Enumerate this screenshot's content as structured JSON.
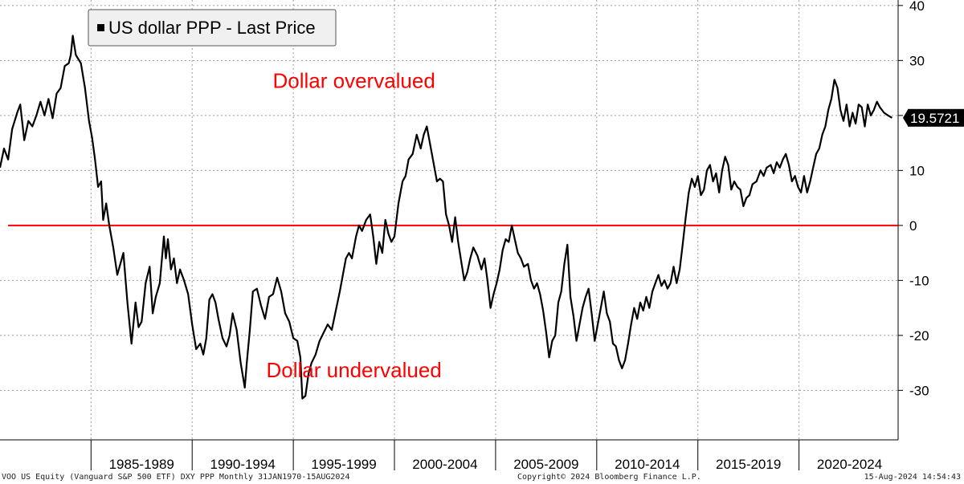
{
  "chart_data": {
    "type": "line",
    "title": "",
    "legend_label": "US dollar PPP - Last Price",
    "legend_position": "top-left",
    "last_price_label": "19.5721",
    "xlabel": "",
    "ylabel": "",
    "ylim": [
      -39,
      41
    ],
    "yticks": [
      40,
      30,
      20,
      10,
      0,
      -10,
      -20,
      -30
    ],
    "xlim": [
      1980.5,
      2024.9
    ],
    "x_period_labels": [
      "1985-1989",
      "1990-1994",
      "1995-1999",
      "2000-2004",
      "2005-2009",
      "2010-2014",
      "2015-2019",
      "2020-2024"
    ],
    "x_period_separators": [
      1985,
      1990,
      1995,
      2000,
      2005,
      2010,
      2015,
      2020
    ],
    "reference_line": {
      "value": 0,
      "color": "#ff0000"
    },
    "annotations": [
      {
        "text": "Dollar overvalued",
        "x": 1998.0,
        "y": 25.0,
        "color": "#ff0000"
      },
      {
        "text": "Dollar undervalued",
        "x": 1998.0,
        "y": -27.6,
        "color": "#ff0000"
      }
    ],
    "series": [
      {
        "name": "US dollar PPP",
        "color": "#000000",
        "points": [
          [
            1980.5,
            10.5
          ],
          [
            1980.7,
            14.0
          ],
          [
            1980.9,
            12.0
          ],
          [
            1981.1,
            17.5
          ],
          [
            1981.35,
            20.5
          ],
          [
            1981.5,
            22.0
          ],
          [
            1981.7,
            15.5
          ],
          [
            1981.9,
            19.0
          ],
          [
            1982.1,
            18.0
          ],
          [
            1982.3,
            20.0
          ],
          [
            1982.5,
            22.5
          ],
          [
            1982.7,
            20.0
          ],
          [
            1982.9,
            23.0
          ],
          [
            1983.1,
            19.5
          ],
          [
            1983.3,
            24.0
          ],
          [
            1983.5,
            25.0
          ],
          [
            1983.7,
            29.0
          ],
          [
            1983.9,
            29.5
          ],
          [
            1984.0,
            31.0
          ],
          [
            1984.1,
            34.5
          ],
          [
            1984.25,
            31.0
          ],
          [
            1984.5,
            29.5
          ],
          [
            1984.7,
            25.0
          ],
          [
            1984.9,
            19.0
          ],
          [
            1985.05,
            16.0
          ],
          [
            1985.2,
            12.0
          ],
          [
            1985.35,
            7.0
          ],
          [
            1985.5,
            8.0
          ],
          [
            1985.6,
            1.0
          ],
          [
            1985.75,
            4.0
          ],
          [
            1985.9,
            0.0
          ],
          [
            1986.1,
            -4.0
          ],
          [
            1986.3,
            -9.0
          ],
          [
            1986.45,
            -7.0
          ],
          [
            1986.6,
            -5.0
          ],
          [
            1986.8,
            -14.0
          ],
          [
            1987.0,
            -21.5
          ],
          [
            1987.2,
            -14.0
          ],
          [
            1987.35,
            -18.5
          ],
          [
            1987.5,
            -17.5
          ],
          [
            1987.7,
            -10.5
          ],
          [
            1987.9,
            -7.5
          ],
          [
            1988.05,
            -16.0
          ],
          [
            1988.2,
            -13.0
          ],
          [
            1988.4,
            -10.5
          ],
          [
            1988.6,
            -2.0
          ],
          [
            1988.7,
            -6.0
          ],
          [
            1988.8,
            -2.5
          ],
          [
            1988.95,
            -8.0
          ],
          [
            1989.1,
            -6.0
          ],
          [
            1989.25,
            -10.5
          ],
          [
            1989.4,
            -8.0
          ],
          [
            1989.6,
            -10.0
          ],
          [
            1989.8,
            -12.5
          ],
          [
            1990.0,
            -18.0
          ],
          [
            1990.2,
            -22.5
          ],
          [
            1990.4,
            -21.5
          ],
          [
            1990.55,
            -23.5
          ],
          [
            1990.7,
            -20.5
          ],
          [
            1990.85,
            -13.5
          ],
          [
            1991.0,
            -12.5
          ],
          [
            1991.15,
            -14.0
          ],
          [
            1991.3,
            -17.0
          ],
          [
            1991.5,
            -20.5
          ],
          [
            1991.7,
            -22.0
          ],
          [
            1991.85,
            -20.0
          ],
          [
            1992.0,
            -16.0
          ],
          [
            1992.2,
            -19.0
          ],
          [
            1992.4,
            -25.0
          ],
          [
            1992.6,
            -29.5
          ],
          [
            1992.7,
            -25.0
          ],
          [
            1992.85,
            -19.0
          ],
          [
            1993.0,
            -12.0
          ],
          [
            1993.2,
            -11.5
          ],
          [
            1993.4,
            -14.5
          ],
          [
            1993.6,
            -17.0
          ],
          [
            1993.8,
            -13.0
          ],
          [
            1994.0,
            -12.5
          ],
          [
            1994.2,
            -9.5
          ],
          [
            1994.4,
            -12.0
          ],
          [
            1994.6,
            -16.0
          ],
          [
            1994.8,
            -17.5
          ],
          [
            1995.0,
            -20.5
          ],
          [
            1995.2,
            -21.0
          ],
          [
            1995.35,
            -24.0
          ],
          [
            1995.45,
            -31.5
          ],
          [
            1995.6,
            -31.0
          ],
          [
            1995.75,
            -27.0
          ],
          [
            1995.9,
            -25.0
          ],
          [
            1996.1,
            -23.5
          ],
          [
            1996.3,
            -21.0
          ],
          [
            1996.5,
            -19.5
          ],
          [
            1996.7,
            -18.0
          ],
          [
            1996.9,
            -19.0
          ],
          [
            1997.1,
            -15.5
          ],
          [
            1997.3,
            -12.0
          ],
          [
            1997.45,
            -9.0
          ],
          [
            1997.6,
            -6.0
          ],
          [
            1997.75,
            -5.0
          ],
          [
            1997.9,
            -6.0
          ],
          [
            1998.1,
            -2.0
          ],
          [
            1998.25,
            0.0
          ],
          [
            1998.4,
            -1.0
          ],
          [
            1998.6,
            1.0
          ],
          [
            1998.8,
            2.0
          ],
          [
            1998.95,
            -2.0
          ],
          [
            1999.1,
            -7.0
          ],
          [
            1999.25,
            -3.0
          ],
          [
            1999.4,
            -5.0
          ],
          [
            1999.55,
            1.0
          ],
          [
            1999.7,
            -1.5
          ],
          [
            1999.85,
            -3.0
          ],
          [
            2000.0,
            -2.0
          ],
          [
            2000.2,
            4.0
          ],
          [
            2000.4,
            8.0
          ],
          [
            2000.55,
            9.0
          ],
          [
            2000.7,
            12.0
          ],
          [
            2000.9,
            13.0
          ],
          [
            2001.1,
            16.5
          ],
          [
            2001.3,
            14.0
          ],
          [
            2001.45,
            16.5
          ],
          [
            2001.6,
            18.0
          ],
          [
            2001.75,
            15.0
          ],
          [
            2001.9,
            12.0
          ],
          [
            2002.1,
            8.0
          ],
          [
            2002.25,
            8.5
          ],
          [
            2002.4,
            8.0
          ],
          [
            2002.55,
            2.0
          ],
          [
            2002.7,
            0.0
          ],
          [
            2002.85,
            -3.0
          ],
          [
            2003.0,
            1.5
          ],
          [
            2003.15,
            -3.0
          ],
          [
            2003.3,
            -6.5
          ],
          [
            2003.45,
            -10.0
          ],
          [
            2003.6,
            -8.5
          ],
          [
            2003.75,
            -6.0
          ],
          [
            2003.9,
            -4.0
          ],
          [
            2004.1,
            -5.5
          ],
          [
            2004.3,
            -8.0
          ],
          [
            2004.45,
            -6.0
          ],
          [
            2004.6,
            -10.0
          ],
          [
            2004.75,
            -15.0
          ],
          [
            2004.9,
            -12.5
          ],
          [
            2005.05,
            -10.5
          ],
          [
            2005.2,
            -8.0
          ],
          [
            2005.35,
            -4.5
          ],
          [
            2005.5,
            -2.5
          ],
          [
            2005.65,
            -3.0
          ],
          [
            2005.8,
            0.0
          ],
          [
            2005.95,
            -2.5
          ],
          [
            2006.1,
            -5.0
          ],
          [
            2006.25,
            -6.0
          ],
          [
            2006.4,
            -7.5
          ],
          [
            2006.6,
            -7.0
          ],
          [
            2006.75,
            -10.0
          ],
          [
            2006.9,
            -11.5
          ],
          [
            2007.05,
            -10.5
          ],
          [
            2007.2,
            -12.5
          ],
          [
            2007.35,
            -15.5
          ],
          [
            2007.5,
            -19.5
          ],
          [
            2007.65,
            -24.0
          ],
          [
            2007.8,
            -21.0
          ],
          [
            2007.95,
            -20.0
          ],
          [
            2008.1,
            -14.0
          ],
          [
            2008.25,
            -12.0
          ],
          [
            2008.4,
            -7.0
          ],
          [
            2008.55,
            -3.5
          ],
          [
            2008.7,
            -13.0
          ],
          [
            2008.85,
            -16.5
          ],
          [
            2009.0,
            -21.0
          ],
          [
            2009.15,
            -18.0
          ],
          [
            2009.3,
            -15.0
          ],
          [
            2009.45,
            -13.0
          ],
          [
            2009.6,
            -11.5
          ],
          [
            2009.75,
            -16.0
          ],
          [
            2009.9,
            -21.0
          ],
          [
            2010.05,
            -18.0
          ],
          [
            2010.2,
            -15.0
          ],
          [
            2010.35,
            -12.0
          ],
          [
            2010.5,
            -16.0
          ],
          [
            2010.65,
            -17.5
          ],
          [
            2010.8,
            -21.5
          ],
          [
            2010.95,
            -22.0
          ],
          [
            2011.1,
            -24.5
          ],
          [
            2011.25,
            -26.0
          ],
          [
            2011.4,
            -24.5
          ],
          [
            2011.55,
            -21.5
          ],
          [
            2011.7,
            -18.0
          ],
          [
            2011.85,
            -15.0
          ],
          [
            2012.0,
            -17.0
          ],
          [
            2012.15,
            -14.0
          ],
          [
            2012.3,
            -15.5
          ],
          [
            2012.45,
            -13.0
          ],
          [
            2012.6,
            -15.0
          ],
          [
            2012.75,
            -12.0
          ],
          [
            2012.9,
            -10.5
          ],
          [
            2013.05,
            -9.0
          ],
          [
            2013.2,
            -11.0
          ],
          [
            2013.35,
            -10.0
          ],
          [
            2013.5,
            -11.5
          ],
          [
            2013.65,
            -10.5
          ],
          [
            2013.8,
            -7.5
          ],
          [
            2013.95,
            -10.5
          ],
          [
            2014.1,
            -8.0
          ],
          [
            2014.25,
            -3.5
          ],
          [
            2014.4,
            1.5
          ],
          [
            2014.55,
            6.0
          ],
          [
            2014.7,
            8.5
          ],
          [
            2014.85,
            7.0
          ],
          [
            2015.0,
            9.0
          ],
          [
            2015.15,
            5.5
          ],
          [
            2015.3,
            6.5
          ],
          [
            2015.45,
            10.0
          ],
          [
            2015.6,
            11.0
          ],
          [
            2015.75,
            8.0
          ],
          [
            2015.9,
            9.5
          ],
          [
            2016.05,
            6.0
          ],
          [
            2016.2,
            10.0
          ],
          [
            2016.35,
            12.5
          ],
          [
            2016.5,
            11.0
          ],
          [
            2016.65,
            6.5
          ],
          [
            2016.8,
            8.0
          ],
          [
            2016.95,
            7.0
          ],
          [
            2017.1,
            6.5
          ],
          [
            2017.25,
            3.5
          ],
          [
            2017.4,
            5.0
          ],
          [
            2017.55,
            5.5
          ],
          [
            2017.7,
            7.5
          ],
          [
            2017.9,
            8.0
          ],
          [
            2018.1,
            10.0
          ],
          [
            2018.25,
            9.0
          ],
          [
            2018.4,
            10.5
          ],
          [
            2018.6,
            11.0
          ],
          [
            2018.75,
            9.5
          ],
          [
            2018.9,
            11.5
          ],
          [
            2019.05,
            10.5
          ],
          [
            2019.2,
            12.0
          ],
          [
            2019.35,
            13.0
          ],
          [
            2019.5,
            11.0
          ],
          [
            2019.65,
            8.0
          ],
          [
            2019.8,
            9.0
          ],
          [
            2019.95,
            7.0
          ],
          [
            2020.1,
            6.0
          ],
          [
            2020.25,
            9.0
          ],
          [
            2020.4,
            6.0
          ],
          [
            2020.55,
            8.0
          ],
          [
            2020.7,
            10.5
          ],
          [
            2020.85,
            13.0
          ],
          [
            2021.0,
            14.0
          ],
          [
            2021.15,
            16.5
          ],
          [
            2021.3,
            18.0
          ],
          [
            2021.45,
            21.0
          ],
          [
            2021.6,
            23.0
          ],
          [
            2021.75,
            26.5
          ],
          [
            2021.9,
            25.0
          ],
          [
            2022.05,
            21.0
          ],
          [
            2022.2,
            19.0
          ],
          [
            2022.35,
            22.0
          ],
          [
            2022.5,
            18.0
          ],
          [
            2022.65,
            20.5
          ],
          [
            2022.8,
            18.5
          ],
          [
            2022.95,
            22.0
          ],
          [
            2023.1,
            21.5
          ],
          [
            2023.25,
            18.0
          ],
          [
            2023.4,
            22.0
          ],
          [
            2023.55,
            20.0
          ],
          [
            2023.7,
            21.0
          ],
          [
            2023.85,
            22.5
          ],
          [
            2024.0,
            21.5
          ],
          [
            2024.2,
            20.5
          ],
          [
            2024.4,
            20.0
          ],
          [
            2024.6,
            19.57
          ]
        ]
      }
    ]
  },
  "footer": {
    "left": "VOO US Equity (Vanguard S&P 500 ETF) DXY PPP  Monthly 31JAN1970-15AUG2024",
    "center": "Copyright© 2024 Bloomberg Finance L.P.",
    "right": "15-Aug-2024 14:54:43"
  }
}
